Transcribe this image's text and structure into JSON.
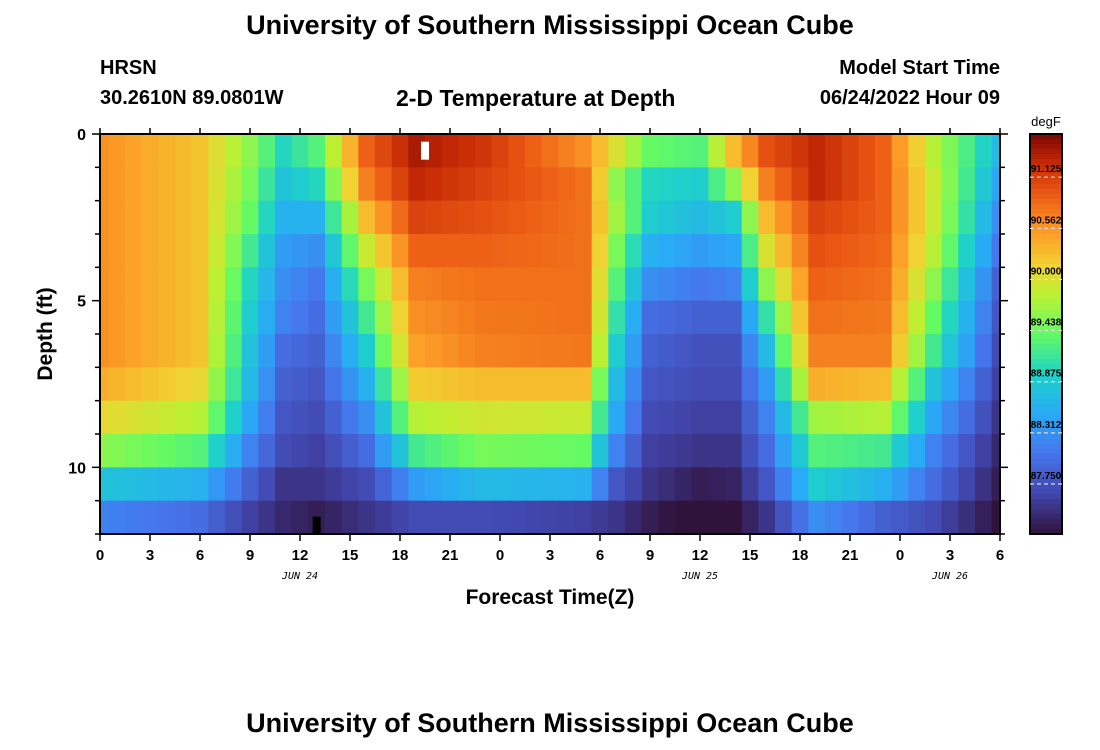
{
  "header": {
    "title": "University of Southern Mississippi Ocean Cube",
    "station": "HRSN",
    "coords": "30.2610N  89.0801W",
    "plot_title": "2-D Temperature at Depth",
    "start_label": "Model Start Time",
    "start_value": "06/24/2022 Hour 09"
  },
  "footer": {
    "title": "University of Southern Mississippi Ocean Cube"
  },
  "chart_data": {
    "type": "heatmap",
    "title": "2-D Temperature at Depth",
    "xlabel": "Forecast Time(Z)",
    "ylabel": "Depth (ft)",
    "x_range_hours": [
      0,
      54
    ],
    "x_tick_hours": [
      0,
      3,
      6,
      9,
      12,
      15,
      18,
      21,
      24,
      27,
      30,
      33,
      36,
      39,
      42,
      45,
      48,
      51,
      54
    ],
    "x_tick_labels": [
      "0",
      "3",
      "6",
      "9",
      "12",
      "15",
      "18",
      "21",
      "0",
      "3",
      "6",
      "9",
      "12",
      "15",
      "18",
      "21",
      "0",
      "3",
      "6"
    ],
    "date_labels": [
      {
        "hour": 12,
        "text": "JUN 24"
      },
      {
        "hour": 36,
        "text": "JUN 25"
      },
      {
        "hour": 51,
        "text": "JUN 26"
      }
    ],
    "y_range_ft": [
      0,
      12
    ],
    "y_tick_values": [
      0,
      5,
      10
    ],
    "y_tick_labels": [
      "0",
      "5",
      "10"
    ],
    "depth_levels_ft": [
      0.5,
      1.5,
      2.5,
      3.5,
      4.5,
      5.5,
      6.5,
      7.5,
      8.5,
      9.5,
      10.5,
      11.5
    ],
    "colorbar": {
      "units": "degF",
      "min": 87.2,
      "max": 91.6,
      "tick_values": [
        91.125,
        90.562,
        90.0,
        89.438,
        88.875,
        88.312,
        87.75
      ],
      "tick_labels": [
        "91.125",
        "90.562",
        "90.000",
        "89.438",
        "88.875",
        "88.312",
        "87.750"
      ]
    },
    "markers": [
      {
        "kind": "max",
        "hour": 19.5,
        "depth_ft": 0.5,
        "color": "#ffffff"
      },
      {
        "kind": "min",
        "hour": 13,
        "depth_ft": 11.75,
        "color": "#000000"
      }
    ],
    "columns": [
      {
        "hour": 0,
        "temps": [
          90.6,
          90.6,
          90.6,
          90.6,
          90.6,
          90.6,
          90.6,
          90.4,
          90.1,
          89.6,
          88.8,
          88.2
        ]
      },
      {
        "hour": 6,
        "temps": [
          90.25,
          90.25,
          90.25,
          90.25,
          90.25,
          90.25,
          90.25,
          90.1,
          89.8,
          89.3,
          88.6,
          88.0
        ]
      },
      {
        "hour": 9,
        "temps": [
          89.6,
          89.5,
          89.4,
          89.2,
          89.0,
          88.9,
          88.8,
          88.7,
          88.5,
          88.2,
          87.9,
          87.6
        ]
      },
      {
        "hour": 11,
        "temps": [
          89.0,
          88.8,
          88.6,
          88.4,
          88.3,
          88.2,
          88.0,
          87.9,
          87.8,
          87.7,
          87.5,
          87.4
        ]
      },
      {
        "hour": 13,
        "temps": [
          89.3,
          89.0,
          88.6,
          88.3,
          88.1,
          88.0,
          87.9,
          87.8,
          87.7,
          87.6,
          87.5,
          87.3
        ]
      },
      {
        "hour": 16,
        "temps": [
          90.9,
          90.7,
          90.3,
          89.9,
          89.5,
          89.2,
          88.9,
          88.6,
          88.3,
          88.0,
          87.7,
          87.5
        ]
      },
      {
        "hour": 19,
        "temps": [
          91.4,
          91.3,
          91.1,
          90.9,
          90.7,
          90.6,
          90.5,
          90.2,
          89.8,
          89.2,
          88.4,
          87.7
        ]
      },
      {
        "hour": 23,
        "temps": [
          91.2,
          91.1,
          91.0,
          90.9,
          90.8,
          90.75,
          90.7,
          90.3,
          89.95,
          89.5,
          88.7,
          87.7
        ]
      },
      {
        "hour": 29,
        "temps": [
          90.6,
          90.8,
          90.8,
          90.8,
          90.8,
          90.8,
          90.75,
          90.3,
          89.9,
          89.4,
          88.6,
          87.6
        ]
      },
      {
        "hour": 31,
        "temps": [
          90.0,
          89.6,
          89.7,
          89.5,
          89.3,
          89.1,
          88.9,
          88.7,
          88.5,
          88.2,
          87.8,
          87.5
        ]
      },
      {
        "hour": 33,
        "temps": [
          89.4,
          89.0,
          88.9,
          88.6,
          88.3,
          88.0,
          87.9,
          87.8,
          87.7,
          87.6,
          87.5,
          87.3
        ]
      },
      {
        "hour": 36,
        "temps": [
          89.3,
          88.9,
          88.7,
          88.4,
          88.1,
          87.9,
          87.75,
          87.7,
          87.6,
          87.5,
          87.3,
          87.1
        ]
      },
      {
        "hour": 38,
        "temps": [
          90.3,
          89.6,
          88.9,
          88.5,
          88.2,
          87.9,
          87.75,
          87.7,
          87.6,
          87.5,
          87.35,
          87.2
        ]
      },
      {
        "hour": 40,
        "temps": [
          91.0,
          90.7,
          90.3,
          90.0,
          89.6,
          89.1,
          88.7,
          88.4,
          88.2,
          88.0,
          87.8,
          87.5
        ]
      },
      {
        "hour": 43,
        "temps": [
          91.3,
          91.3,
          91.1,
          91.0,
          90.9,
          90.8,
          90.7,
          90.4,
          89.7,
          89.3,
          88.9,
          88.3
        ]
      },
      {
        "hour": 47,
        "temps": [
          90.9,
          90.9,
          90.9,
          90.85,
          90.8,
          90.75,
          90.7,
          90.3,
          89.8,
          89.2,
          88.6,
          87.9
        ]
      },
      {
        "hour": 50,
        "temps": [
          89.8,
          89.9,
          89.9,
          89.8,
          89.6,
          89.4,
          89.2,
          88.8,
          88.5,
          88.2,
          88.0,
          87.7
        ]
      },
      {
        "hour": 54,
        "temps": [
          88.7,
          88.5,
          88.3,
          88.1,
          87.9,
          87.8,
          87.7,
          87.6,
          87.5,
          87.4,
          87.3,
          87.2
        ]
      }
    ]
  }
}
